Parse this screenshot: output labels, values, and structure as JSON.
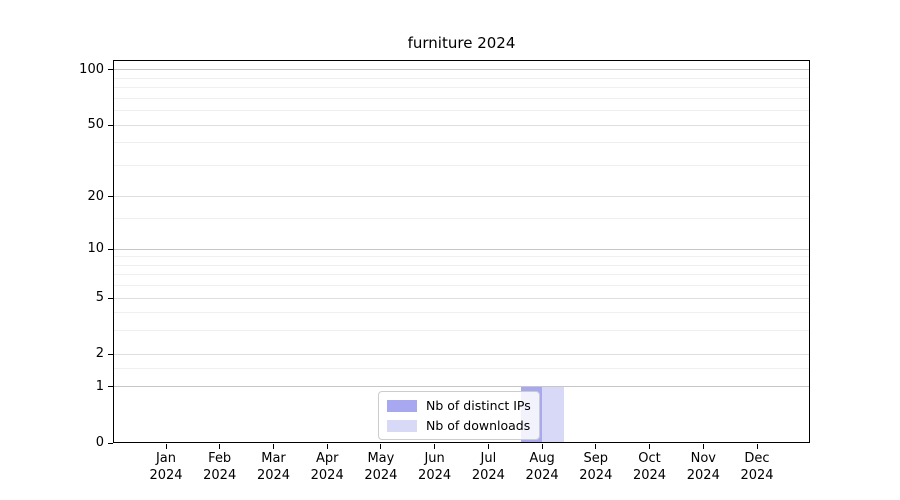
{
  "chart_data": {
    "type": "bar",
    "title": "furniture 2024",
    "categories": [
      "Jan",
      "Feb",
      "Mar",
      "Apr",
      "May",
      "Jun",
      "Jul",
      "Aug",
      "Sep",
      "Oct",
      "Nov",
      "Dec"
    ],
    "year": "2024",
    "series": [
      {
        "name": "Nb of distinct IPs",
        "color": "#a8a8f0",
        "values": [
          0,
          0,
          0,
          0,
          0,
          0,
          0,
          1,
          0,
          0,
          0,
          0
        ]
      },
      {
        "name": "Nb of downloads",
        "color": "#d8d8f7",
        "values": [
          0,
          0,
          0,
          0,
          0,
          0,
          0,
          1,
          0,
          0,
          0,
          0
        ]
      }
    ],
    "xlabel": "",
    "ylabel": "",
    "y_scale": "log1p",
    "ylim": [
      0,
      113
    ],
    "y_ticks": [
      100,
      50,
      20,
      10,
      5,
      2,
      1,
      0
    ],
    "y_tick_labels": [
      "100",
      "50",
      "20",
      "10",
      "5",
      "2",
      "1",
      "0"
    ],
    "y_minor_ticks": [
      1.5,
      3,
      4,
      6,
      7,
      8,
      9,
      15,
      30,
      40,
      60,
      70,
      80,
      90
    ],
    "grid": "on",
    "legend_position": "lower center",
    "colors": {
      "grid_decade": "#c6c6c6",
      "grid_major": "#dedede",
      "grid_minor": "#efefef",
      "spine": "#000000",
      "text": "#000000",
      "legend_border": "#cccccc"
    }
  }
}
